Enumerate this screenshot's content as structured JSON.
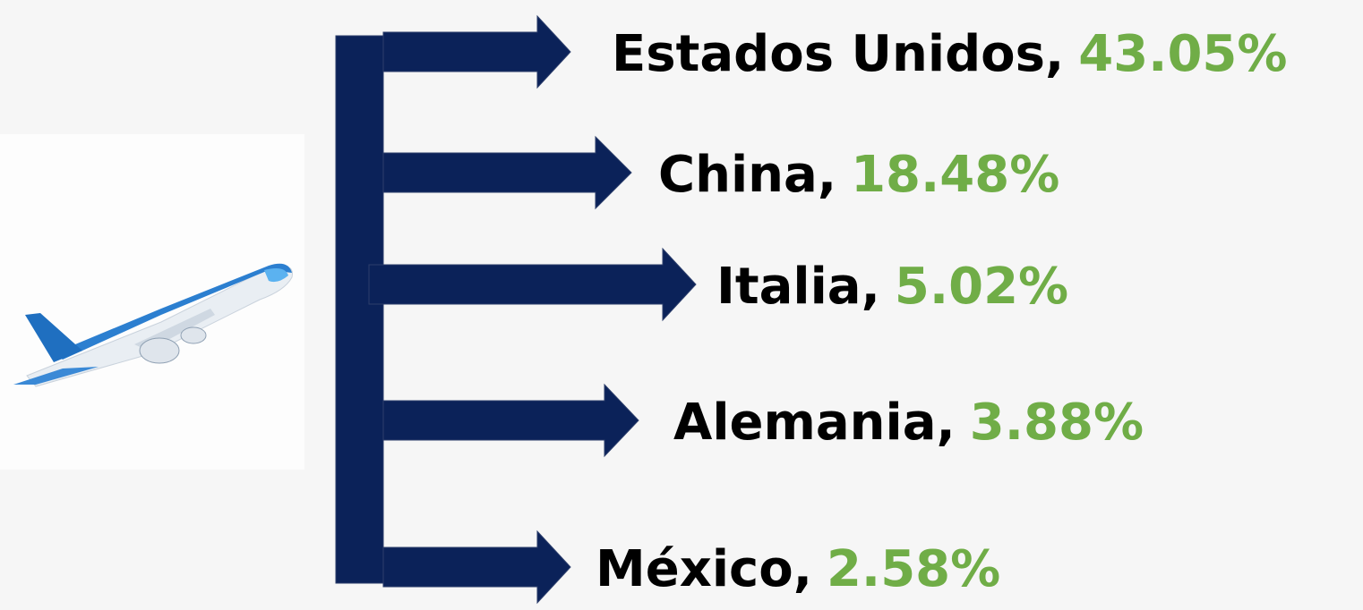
{
  "items": [
    {
      "label": "Estados Unidos,",
      "share": "43.05%"
    },
    {
      "label": "China,",
      "share": "18.48%"
    },
    {
      "label": "Italia,",
      "share": "5.02%"
    },
    {
      "label": "Alemania,",
      "share": "3.88%"
    },
    {
      "label": "México,",
      "share": "2.58%"
    }
  ]
}
